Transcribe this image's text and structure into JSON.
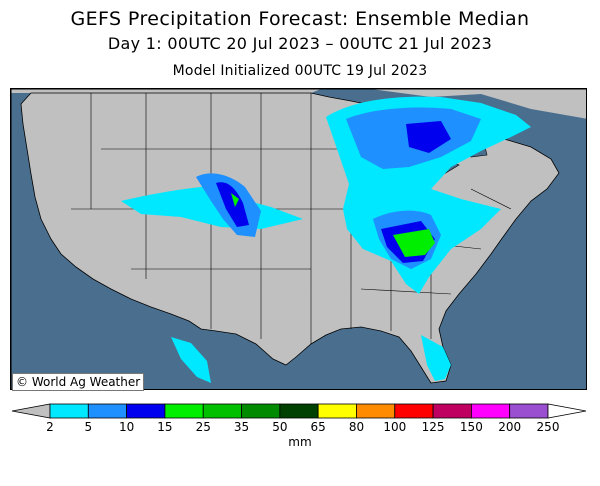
{
  "header": {
    "title": "GEFS Precipitation Forecast: Ensemble Median",
    "period": "Day 1: 00UTC 20 Jul 2023 – 00UTC 21 Jul 2023",
    "initialized": "Model Initialized 00UTC 19 Jul 2023"
  },
  "map": {
    "credit": "© World Ag Weather",
    "land_color": "#c0c0c0",
    "water_color": "#4a6e8e"
  },
  "legend": {
    "unit": "mm",
    "ticks": [
      "2",
      "5",
      "10",
      "15",
      "25",
      "35",
      "50",
      "65",
      "80",
      "100",
      "125",
      "150",
      "200",
      "250"
    ],
    "colors": [
      "#00e8ff",
      "#1e90ff",
      "#0000ee",
      "#00ee00",
      "#00c000",
      "#008a00",
      "#004000",
      "#ffff00",
      "#ff8c00",
      "#ff0000",
      "#c00060",
      "#ff00ff",
      "#9a4fd0"
    ],
    "below_color": "#c0c0c0",
    "above_color": "#ffffff"
  }
}
